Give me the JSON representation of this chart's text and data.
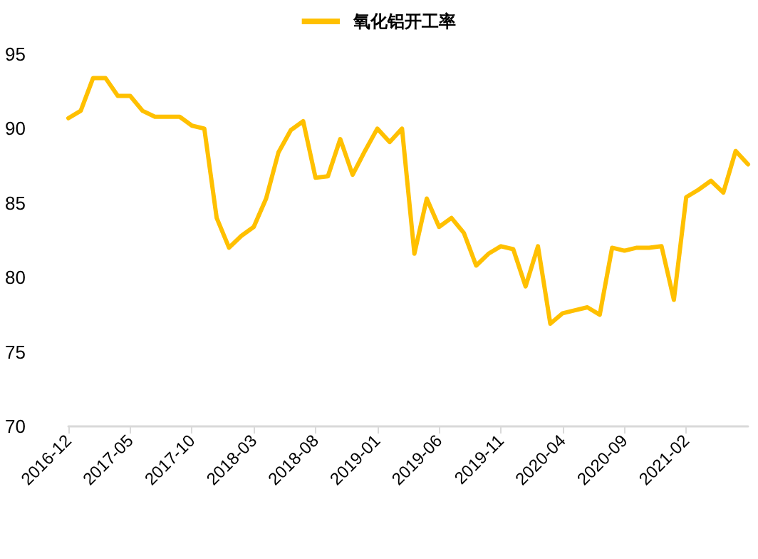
{
  "chart_data": {
    "type": "line",
    "categories": [
      "2016-12",
      null,
      null,
      null,
      null,
      "2017-05",
      null,
      null,
      null,
      null,
      "2017-10",
      null,
      null,
      null,
      null,
      "2018-03",
      null,
      null,
      null,
      null,
      "2018-08",
      null,
      null,
      null,
      null,
      "2019-01",
      null,
      null,
      null,
      null,
      "2019-06",
      null,
      null,
      null,
      null,
      "2019-11",
      null,
      null,
      null,
      null,
      "2020-04",
      null,
      null,
      null,
      null,
      "2020-09",
      null,
      null,
      null,
      null,
      "2021-02",
      null,
      null,
      null,
      null,
      null
    ],
    "series": [
      {
        "name": "氧化铝开工率",
        "color": "#ffc000",
        "values": [
          90.7,
          91.2,
          93.4,
          93.4,
          92.2,
          92.2,
          91.2,
          90.8,
          90.8,
          90.8,
          90.2,
          90.0,
          84.0,
          82.0,
          82.8,
          83.4,
          85.3,
          88.4,
          89.9,
          90.5,
          86.7,
          86.8,
          89.3,
          86.9,
          88.5,
          90.0,
          89.1,
          90.0,
          81.6,
          85.3,
          83.4,
          84.0,
          83.0,
          80.8,
          81.6,
          82.1,
          81.9,
          79.4,
          82.1,
          76.9,
          77.6,
          77.8,
          78.0,
          77.5,
          82.0,
          81.8,
          82.0,
          82.0,
          82.1,
          78.5,
          85.4,
          85.9,
          86.5,
          85.7,
          88.5,
          87.6
        ]
      }
    ],
    "ylim": [
      70,
      95
    ],
    "yticks": [
      70,
      75,
      80,
      85,
      90,
      95
    ],
    "grid": false,
    "legend": "top",
    "marker": "none",
    "line_style": "solid"
  }
}
